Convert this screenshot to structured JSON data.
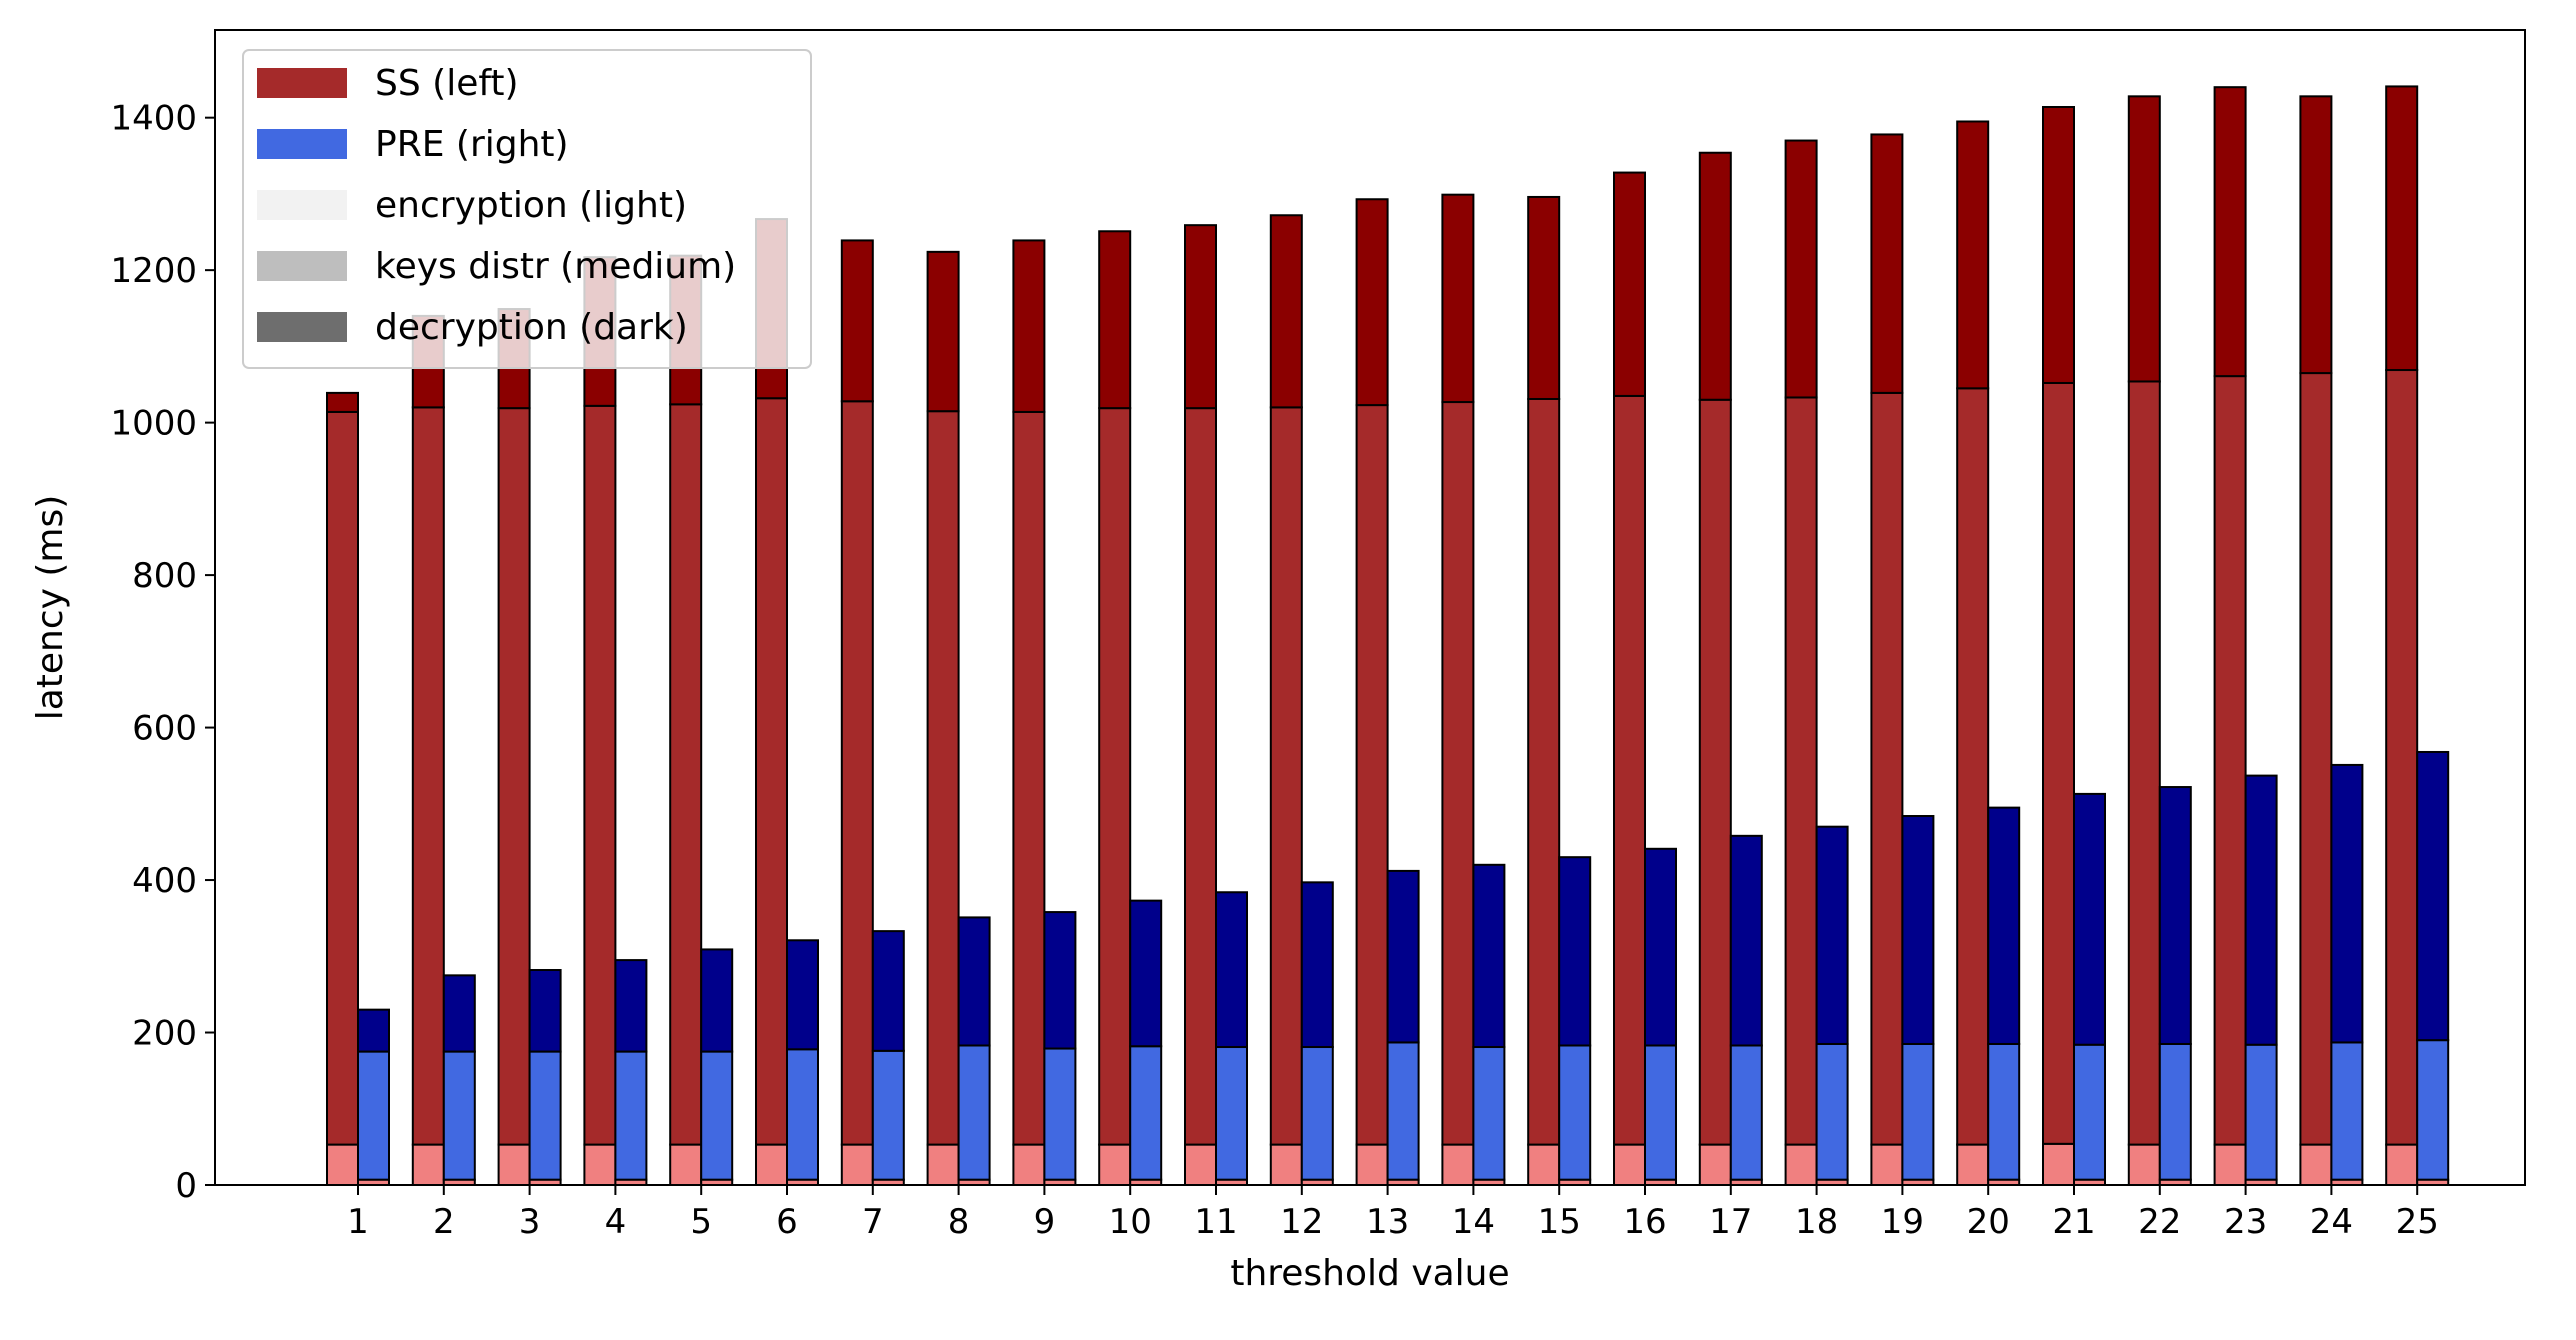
{
  "chart_data": {
    "type": "bar",
    "stacked": true,
    "grouped": true,
    "title": "",
    "xlabel": "threshold value",
    "ylabel": "latency (ms)",
    "ylim": [
      0,
      1515
    ],
    "yticks": [
      0,
      200,
      400,
      600,
      800,
      1000,
      1200,
      1400
    ],
    "grid": false,
    "legend_position": "top-left",
    "categories": [
      "1",
      "2",
      "3",
      "4",
      "5",
      "6",
      "7",
      "8",
      "9",
      "10",
      "11",
      "12",
      "13",
      "14",
      "15",
      "16",
      "17",
      "18",
      "19",
      "20",
      "21",
      "22",
      "23",
      "24",
      "25"
    ],
    "legend": [
      {
        "label": "SS (left)",
        "color": "#a52a2a"
      },
      {
        "label": "PRE (right)",
        "color": "#4169e1"
      },
      {
        "label": "encryption (light)",
        "color": "#f2f2f2"
      },
      {
        "label": "keys distr (medium)",
        "color": "#bebebe"
      },
      {
        "label": "decryption (dark)",
        "color": "#6e6e6e"
      }
    ],
    "groups": [
      {
        "name": "SS",
        "position": "left",
        "segments": [
          {
            "name": "encryption",
            "color": "#f08080",
            "values": [
              53,
              53,
              53,
              53,
              53,
              53,
              53,
              53,
              53,
              53,
              53,
              53,
              53,
              53,
              53,
              53,
              53,
              53,
              53,
              53,
              54,
              53,
              53,
              53,
              53
            ]
          },
          {
            "name": "keys distr",
            "color": "#a52a2a",
            "values": [
              961,
              967,
              966,
              969,
              971,
              979,
              975,
              962,
              961,
              966,
              966,
              967,
              970,
              974,
              978,
              982,
              977,
              980,
              986,
              992,
              998,
              1001,
              1008,
              1012,
              1016
            ]
          },
          {
            "name": "decryption",
            "color": "#8b0000",
            "values": [
              25,
              120,
              130,
              195,
              195,
              235,
              211,
              209,
              225,
              232,
              240,
              252,
              270,
              272,
              265,
              293,
              324,
              337,
              339,
              350,
              362,
              374,
              379,
              363,
              372
            ]
          }
        ]
      },
      {
        "name": "PRE",
        "position": "right",
        "segments": [
          {
            "name": "encryption",
            "color": "#f08080",
            "values": [
              7,
              7,
              7,
              7,
              7,
              7,
              7,
              7,
              7,
              7,
              7,
              7,
              7,
              7,
              7,
              7,
              7,
              7,
              7,
              7,
              7,
              7,
              7,
              7,
              7
            ]
          },
          {
            "name": "keys distr",
            "color": "#4169e1",
            "values": [
              168,
              168,
              168,
              168,
              168,
              171,
              169,
              176,
              172,
              175,
              174,
              174,
              180,
              174,
              176,
              176,
              176,
              178,
              178,
              178,
              177,
              178,
              177,
              180,
              183
            ]
          },
          {
            "name": "decryption",
            "color": "#00008b",
            "values": [
              55,
              100,
              107,
              120,
              134,
              143,
              157,
              168,
              179,
              191,
              203,
              216,
              225,
              239,
              247,
              258,
              275,
              285,
              299,
              310,
              329,
              337,
              353,
              364,
              378
            ]
          }
        ]
      }
    ]
  }
}
